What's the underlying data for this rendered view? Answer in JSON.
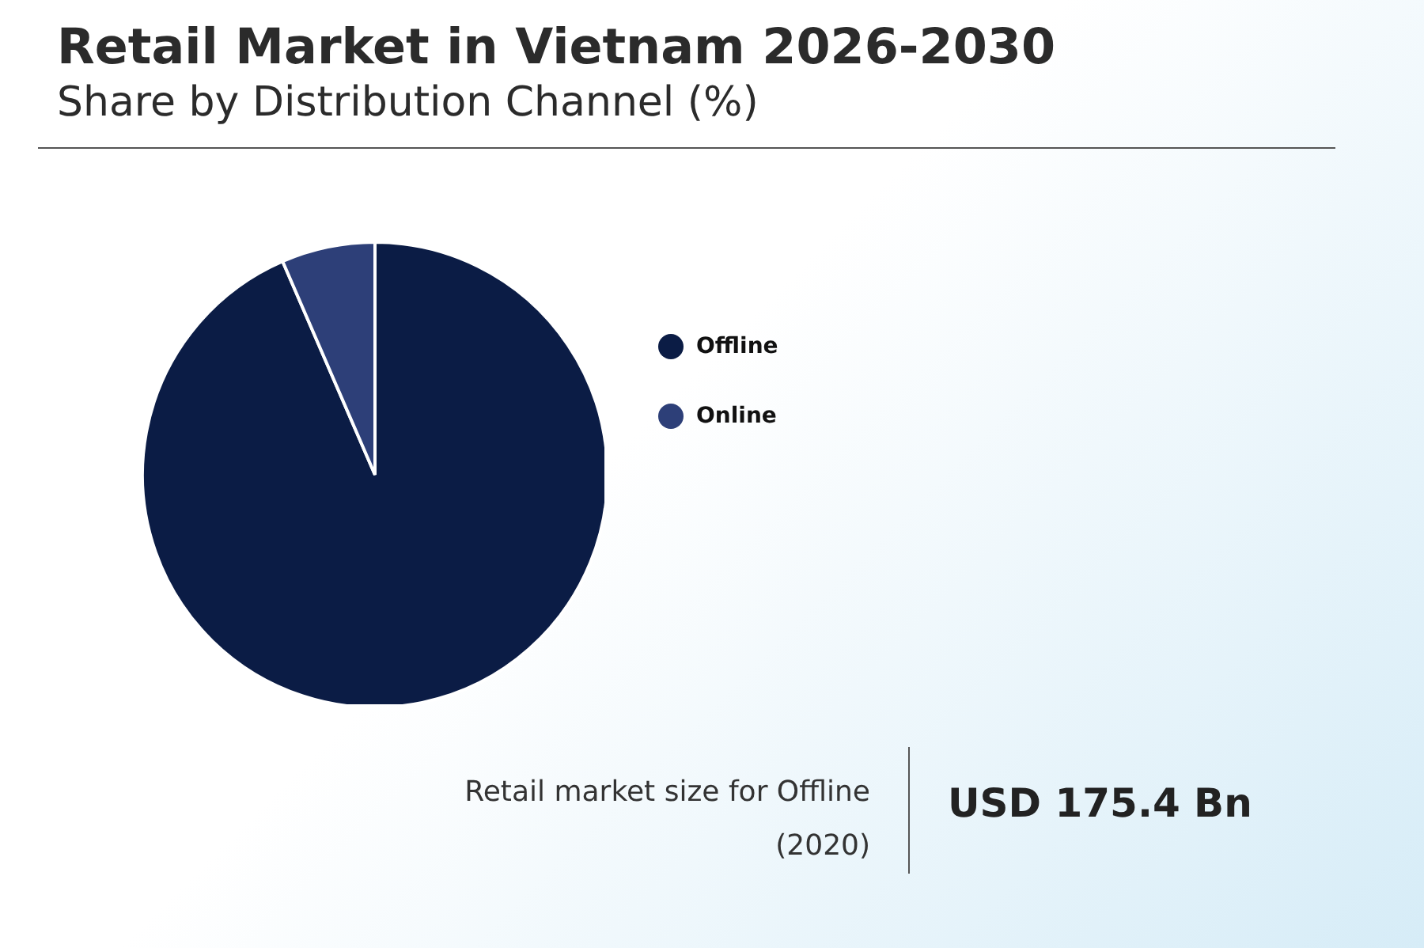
{
  "chart_data": {
    "type": "pie",
    "title": "Retail Market in Vietnam 2026-2030",
    "subtitle": "Share by Distribution Channel (%)",
    "categories": [
      "Offline",
      "Online"
    ],
    "values": [
      93.5,
      6.5
    ],
    "colors": [
      "#0b1c45",
      "#2d3f78"
    ],
    "legend": "right",
    "annotations": [
      "Retail market size for Offline (2020)",
      "USD 175.4 Bn"
    ]
  }
}
